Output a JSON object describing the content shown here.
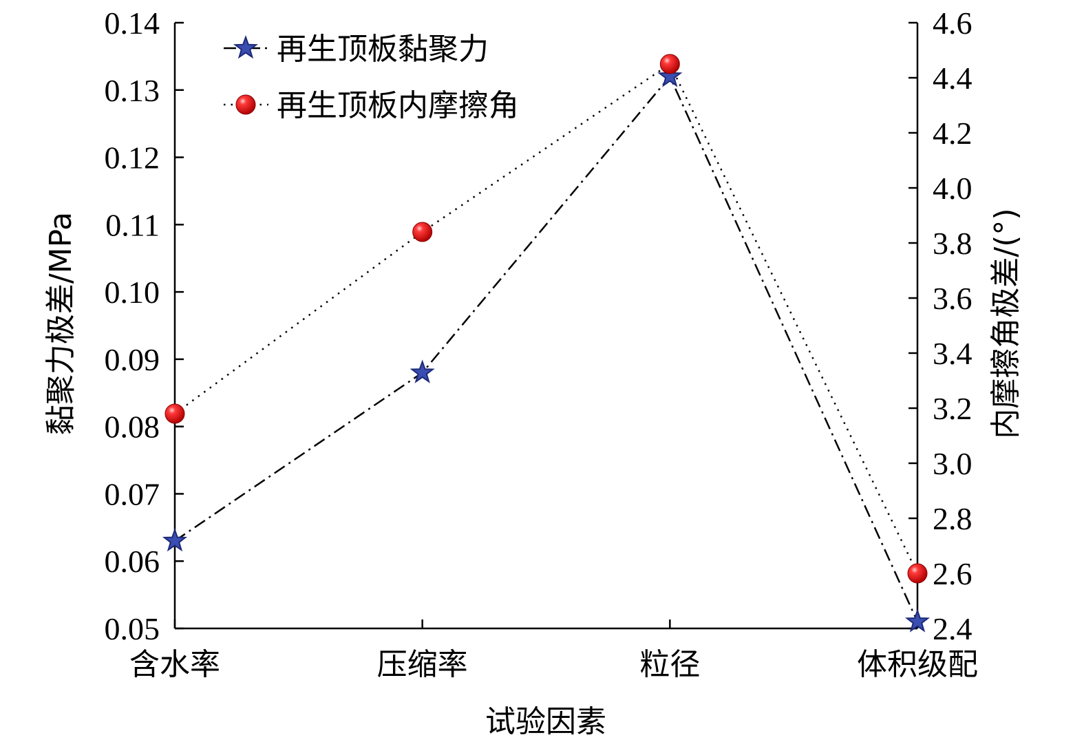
{
  "chart_data": {
    "type": "line",
    "categories": [
      "含水率",
      "压缩率",
      "粒径",
      "体积级配"
    ],
    "xlabel": "试验因素",
    "y_left": {
      "label": "黏聚力极差/MPa",
      "range": [
        0.05,
        0.14
      ],
      "ticks": [
        "0.05",
        "0.06",
        "0.07",
        "0.08",
        "0.09",
        "0.10",
        "0.11",
        "0.12",
        "0.13",
        "0.14"
      ]
    },
    "y_right": {
      "label": "内摩擦角极差/(°)",
      "range": [
        2.4,
        4.6
      ],
      "ticks": [
        "2.4",
        "2.6",
        "2.8",
        "3.0",
        "3.2",
        "3.4",
        "3.6",
        "3.8",
        "4.0",
        "4.2",
        "4.4",
        "4.6"
      ]
    },
    "series": [
      {
        "name": "再生顶板黏聚力",
        "axis": "left",
        "values": [
          0.063,
          0.088,
          0.132,
          0.051
        ],
        "color": "#2e3f9e",
        "marker": "star",
        "line": "dash-dot"
      },
      {
        "name": "再生顶板内摩擦角",
        "axis": "right",
        "values": [
          3.18,
          3.84,
          4.45,
          2.6
        ],
        "color": "#e02020",
        "marker": "circle",
        "line": "dotted"
      }
    ],
    "legend_position": "top-left",
    "grid": false
  }
}
